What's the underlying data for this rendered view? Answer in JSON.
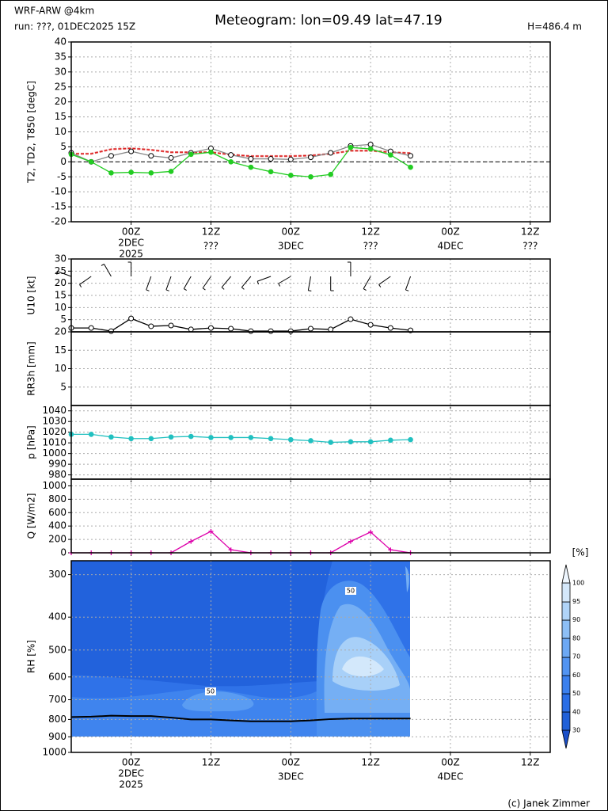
{
  "header": {
    "model": "WRF-ARW @4km",
    "run": "run: ???, 01DEC2025 15Z",
    "title": "Meteogram: lon=09.49 lat=47.19",
    "height": "H=486.4 m"
  },
  "footer": "(c) Janek Zimmer",
  "chart_data": [
    {
      "type": "line",
      "ylabel": "T2, TD2, T850 [degC]",
      "grid": true,
      "x": [
        0,
        3,
        6,
        9,
        12,
        15,
        18,
        21,
        24,
        27,
        30,
        33,
        36,
        39,
        42,
        45,
        48,
        51
      ],
      "xlim": [
        0,
        72
      ],
      "xticks": [
        {
          "value": 9,
          "label": "00Z",
          "sublabel": "2DEC",
          "year": "2025"
        },
        {
          "value": 21,
          "label": "12Z",
          "sublabel": "???"
        },
        {
          "value": 33,
          "label": "00Z",
          "sublabel": "3DEC"
        },
        {
          "value": 45,
          "label": "12Z",
          "sublabel": "???"
        },
        {
          "value": 57,
          "label": "00Z",
          "sublabel": "4DEC"
        },
        {
          "value": 69,
          "label": "12Z",
          "sublabel": "???"
        }
      ],
      "ylim": [
        -20,
        40
      ],
      "yticks": [
        -20,
        -15,
        -10,
        -5,
        0,
        5,
        10,
        15,
        20,
        25,
        30,
        35,
        40
      ],
      "zero_line": 0,
      "series": [
        {
          "name": "T850",
          "color": "#dd2222",
          "dash": true,
          "marker": "none",
          "values": [
            2.7,
            2.7,
            4.2,
            4.5,
            4,
            3.2,
            3.2,
            3.2,
            2.4,
            1.9,
            1.9,
            1.9,
            2.1,
            2.7,
            3.7,
            3.7,
            3.2,
            2.9
          ]
        },
        {
          "name": "T2",
          "color": "#888888",
          "marker": "open-circle",
          "values": [
            3,
            0,
            2,
            3.5,
            2,
            1.3,
            3,
            4.5,
            2.3,
            1,
            1,
            0.8,
            1.5,
            3,
            5.3,
            5.8,
            3.5,
            2
          ]
        },
        {
          "name": "TD2",
          "color": "#22cc22",
          "marker": "circle",
          "values": [
            2.5,
            0,
            -3.7,
            -3.5,
            -3.7,
            -3.2,
            2.5,
            3.2,
            0,
            -1.8,
            -3.3,
            -4.5,
            -5,
            -4.2,
            4.8,
            4.3,
            2.3,
            -1.8
          ]
        }
      ]
    },
    {
      "type": "line",
      "ylabel": "U10 [kt]",
      "grid": true,
      "x": [
        0,
        3,
        6,
        9,
        12,
        15,
        18,
        21,
        24,
        27,
        30,
        33,
        36,
        39,
        42,
        45,
        48,
        51
      ],
      "xlim": [
        0,
        72
      ],
      "xticks": [
        9,
        21,
        33,
        45,
        57,
        69
      ],
      "ylim": [
        0,
        30
      ],
      "yticks": [
        5,
        10,
        15,
        20,
        25,
        30
      ],
      "wind_direction": [
        290,
        235,
        330,
        0,
        200,
        200,
        210,
        215,
        220,
        220,
        250,
        240,
        190,
        180,
        0,
        210,
        235,
        200
      ],
      "series": [
        {
          "name": "U10",
          "color": "#000000",
          "marker": "open-circle",
          "values": [
            1.6,
            1.6,
            0.3,
            5.5,
            2.3,
            2.6,
            1,
            1.6,
            1.3,
            0.3,
            0.3,
            0.3,
            1.3,
            1,
            5.2,
            2.9,
            1.6,
            0.6
          ]
        }
      ]
    },
    {
      "type": "line",
      "ylabel": "RR3h [mm]",
      "grid": true,
      "x": [
        0,
        3,
        6,
        9,
        12,
        15,
        18,
        21,
        24,
        27,
        30,
        33,
        36,
        39,
        42,
        45,
        48,
        51
      ],
      "xlim": [
        0,
        72
      ],
      "xticks": [
        9,
        21,
        33,
        45,
        57,
        69
      ],
      "ylim": [
        0,
        20
      ],
      "yticks": [
        5,
        10,
        15,
        20
      ],
      "series": []
    },
    {
      "type": "line",
      "ylabel": "p [hPa]",
      "grid": true,
      "x": [
        0,
        3,
        6,
        9,
        12,
        15,
        18,
        21,
        24,
        27,
        30,
        33,
        36,
        39,
        42,
        45,
        48,
        51
      ],
      "xlim": [
        0,
        72
      ],
      "xticks": [
        9,
        21,
        33,
        45,
        57,
        69
      ],
      "ylim": [
        976,
        1045
      ],
      "yticks": [
        980,
        990,
        1000,
        1010,
        1020,
        1030,
        1040
      ],
      "series": [
        {
          "name": "p",
          "color": "#20c0c0",
          "marker": "circle",
          "values": [
            1018,
            1018,
            1015.5,
            1014,
            1014,
            1015.5,
            1016,
            1015,
            1015,
            1015,
            1014,
            1013,
            1012,
            1010.5,
            1011,
            1011,
            1012.5,
            1013
          ]
        }
      ]
    },
    {
      "type": "line",
      "ylabel": "Q [W/m2]",
      "grid": true,
      "x": [
        0,
        3,
        6,
        9,
        12,
        15,
        18,
        21,
        24,
        27,
        30,
        33,
        36,
        39,
        42,
        45,
        48,
        51
      ],
      "xlim": [
        0,
        72
      ],
      "xticks": [
        9,
        21,
        33,
        45,
        57,
        69
      ],
      "ylim": [
        0,
        1100
      ],
      "yticks": [
        0,
        200,
        400,
        600,
        800,
        1000
      ],
      "series": [
        {
          "name": "Q",
          "color": "#dd00aa",
          "marker": "plus",
          "values": [
            0,
            0,
            0,
            0,
            0,
            0,
            170,
            320,
            45,
            0,
            0,
            0,
            0,
            0,
            170,
            310,
            45,
            0
          ]
        }
      ]
    },
    {
      "type": "line",
      "ylabel": "RH [%]",
      "grid": true,
      "log": true,
      "x": [
        0,
        3,
        6,
        9,
        12,
        15,
        18,
        21,
        24,
        27,
        30,
        33,
        36,
        39,
        42,
        45,
        48,
        51
      ],
      "xlim": [
        0,
        72
      ],
      "xticks": [
        {
          "value": 9,
          "label": "00Z",
          "sublabel": "2DEC",
          "year": "2025"
        },
        {
          "value": 21,
          "label": "12Z"
        },
        {
          "value": 33,
          "label": "00Z",
          "sublabel": "3DEC"
        },
        {
          "value": 45,
          "label": "12Z"
        },
        {
          "value": 57,
          "label": "00Z",
          "sublabel": "4DEC"
        },
        {
          "value": 69,
          "label": "12Z"
        }
      ],
      "ylim": [
        1000,
        273
      ],
      "yticks": [
        300,
        400,
        500,
        600,
        700,
        800,
        900,
        1000
      ],
      "contour_labels": [
        "50",
        "50"
      ],
      "colorbar": {
        "label": "[%]",
        "ticks": [
          30,
          40,
          50,
          60,
          70,
          80,
          90,
          95,
          100
        ]
      },
      "series": [
        {
          "color": "#000000",
          "marker": "none",
          "values": [
            787,
            785,
            780,
            782,
            782,
            790,
            800,
            800,
            805,
            810,
            810,
            810,
            805,
            798,
            795,
            795,
            795,
            795
          ]
        }
      ]
    }
  ]
}
